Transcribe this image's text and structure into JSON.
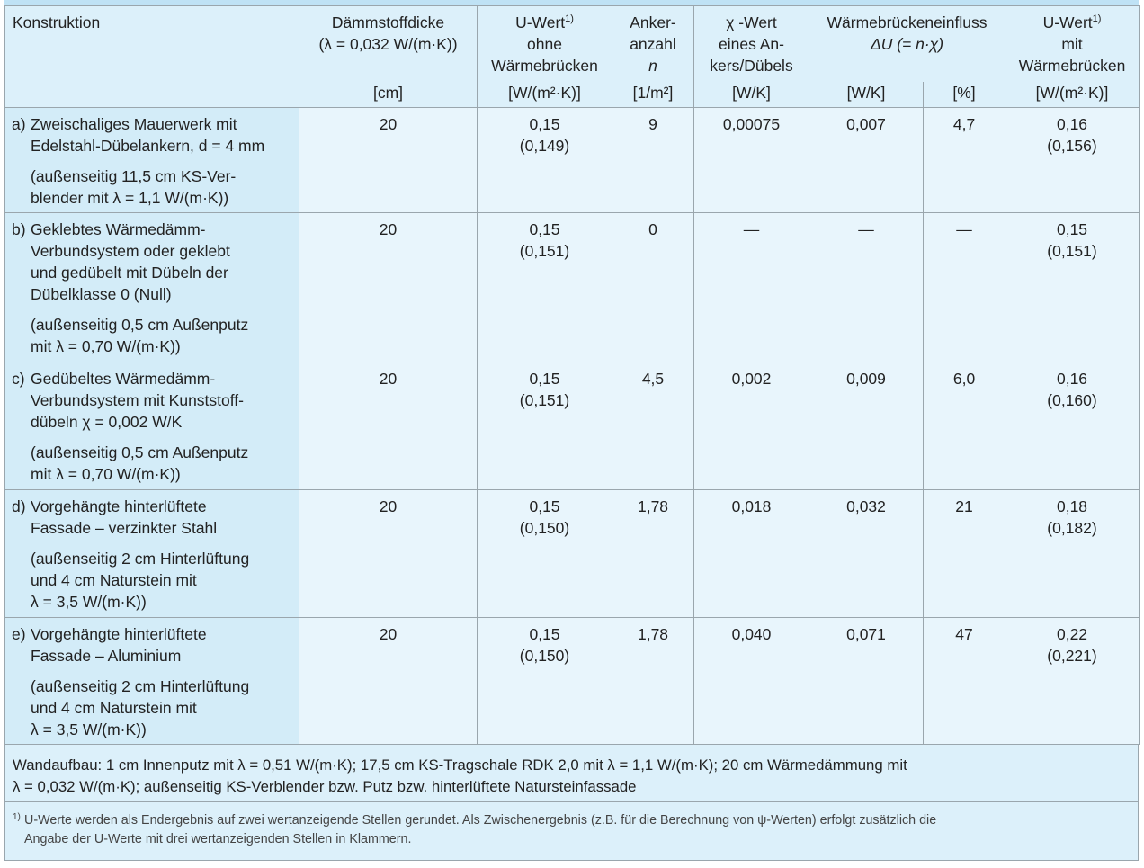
{
  "table": {
    "columns": [
      {
        "title": [
          "Konstruktion"
        ]
      },
      {
        "title": [
          "Dämmstoffdicke",
          "(λ = 0,032 W/(m·K))"
        ],
        "unit": "[cm]"
      },
      {
        "title": [
          "U-Wert",
          "ohne",
          "Wärmebrücken"
        ],
        "footnote_mark": "1)",
        "unit": "[W/(m²·K)]"
      },
      {
        "title": [
          "Anker-",
          "anzahl",
          "n"
        ],
        "unit": "[1/m²]"
      },
      {
        "title": [
          "χ -Wert",
          "eines An-",
          "kers/Dübels"
        ],
        "unit": "[W/K]"
      },
      {
        "title": [
          "Wärmebrückeneinfluss",
          "ΔU (= n·χ)"
        ],
        "units": [
          "[W/K]",
          "[%]"
        ]
      },
      {
        "title": [
          "U-Wert",
          "mit",
          "Wärmebrücken"
        ],
        "footnote_mark": "1)",
        "unit": "[W/(m²·K)]"
      }
    ],
    "rows": [
      {
        "label": "a)",
        "text": [
          "Zweischaliges Mauerwerk mit",
          "Edelstahl-Dübelankern, d = 4 mm"
        ],
        "note": [
          "(außenseitig 11,5 cm KS-Ver-",
          "blender mit λ = 1,1 W/(m·K))"
        ],
        "thickness": "20",
        "u": "0,15",
        "u_exact": "(0,149)",
        "n": "9",
        "chi": "0,00075",
        "du": "0,007",
        "du_pct": "4,7",
        "u_wb": "0,16",
        "u_wb_exact": "(0,156)"
      },
      {
        "label": "b)",
        "text": [
          "Geklebtes Wärmedämm-",
          "Verbundsystem oder geklebt",
          "und gedübelt mit Dübeln der",
          "Dübelklasse 0 (Null)"
        ],
        "note": [
          "(außenseitig 0,5 cm Außenputz",
          "mit λ = 0,70 W/(m·K))"
        ],
        "thickness": "20",
        "u": "0,15",
        "u_exact": "(0,151)",
        "n": "0",
        "chi": "—",
        "du": "—",
        "du_pct": "—",
        "u_wb": "0,15",
        "u_wb_exact": "(0,151)"
      },
      {
        "label": "c)",
        "text": [
          "Gedübeltes Wärmedämm-",
          "Verbundsystem mit Kunststoff-",
          "dübeln χ = 0,002 W/K"
        ],
        "note": [
          "(außenseitig 0,5 cm Außenputz",
          " mit λ = 0,70 W/(m·K))"
        ],
        "thickness": "20",
        "u": "0,15",
        "u_exact": "(0,151)",
        "n": "4,5",
        "chi": "0,002",
        "du": "0,009",
        "du_pct": "6,0",
        "u_wb": "0,16",
        "u_wb_exact": "(0,160)"
      },
      {
        "label": "d)",
        "text": [
          "Vorgehängte hinterlüftete",
          "Fassade – verzinkter Stahl"
        ],
        "note": [
          "(außenseitig 2 cm Hinterlüftung",
          "und 4 cm Naturstein mit",
          "λ = 3,5 W/(m·K))"
        ],
        "thickness": "20",
        "u": "0,15",
        "u_exact": "(0,150)",
        "n": "1,78",
        "chi": "0,018",
        "du": "0,032",
        "du_pct": "21",
        "u_wb": "0,18",
        "u_wb_exact": "(0,182)"
      },
      {
        "label": "e)",
        "text": [
          "Vorgehängte hinterlüftete",
          "Fassade – Aluminium"
        ],
        "note": [
          "(außenseitig 2 cm Hinterlüftung",
          "und 4 cm Naturstein mit",
          "λ = 3,5 W/(m·K))"
        ],
        "thickness": "20",
        "u": "0,15",
        "u_exact": "(0,150)",
        "n": "1,78",
        "chi": "0,040",
        "du": "0,071",
        "du_pct": "47",
        "u_wb": "0,22",
        "u_wb_exact": "(0,221)"
      }
    ],
    "footer": {
      "wall": [
        "Wandaufbau: 1 cm Innenputz mit λ = 0,51 W/(m·K); 17,5 cm KS-Tragschale RDK 2,0 mit λ = 1,1 W/(m·K); 20 cm Wärmedämmung mit",
        "λ = 0,032 W/(m·K); außenseitig KS-Verblender bzw. Putz bzw. hinterlüftete Natursteinfassade"
      ],
      "footnote_mark": "1)",
      "footnote": [
        "U-Werte werden als Endergebnis auf zwei wertanzeigende Stellen gerundet. Als Zwischenergebnis (z.B. für die Berechnung von ψ-Werten) erfolgt zusätzlich die",
        "Angabe der U-Werte mit drei wertanzeigenden Stellen in Klammern."
      ]
    }
  }
}
